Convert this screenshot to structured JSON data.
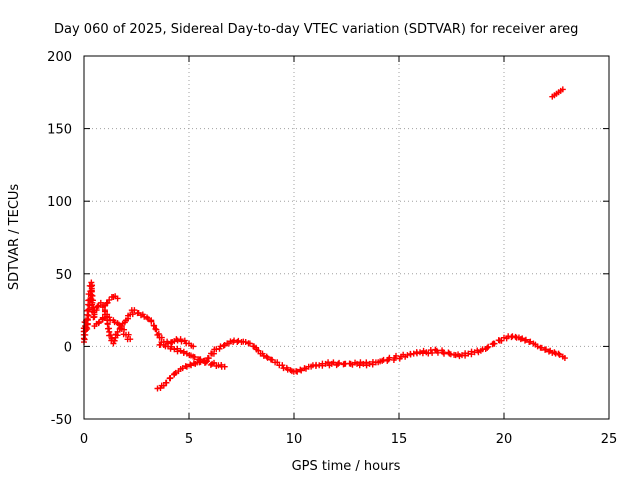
{
  "chart_data": {
    "type": "scatter",
    "title": "Day 060 of 2025, Sidereal Day-to-day VTEC variation (SDTVAR) for receiver areg",
    "xlabel": "GPS time / hours",
    "ylabel": "SDTVAR / TECUs",
    "xlim": [
      0,
      25
    ],
    "ylim": [
      -50,
      200
    ],
    "xticks": [
      0,
      5,
      10,
      15,
      20,
      25
    ],
    "yticks": [
      -50,
      0,
      50,
      100,
      150,
      200
    ],
    "grid": true,
    "marker": "+",
    "colors": {
      "series": "#ff0000",
      "grid": "#a0a0a0",
      "axes": "#000000"
    },
    "series": [
      {
        "name": "SDTVAR",
        "points": [
          [
            0.0,
            3
          ],
          [
            0.05,
            14
          ],
          [
            0.1,
            18
          ],
          [
            0.15,
            12
          ],
          [
            0.2,
            25
          ],
          [
            0.25,
            32
          ],
          [
            0.3,
            38
          ],
          [
            0.35,
            44
          ],
          [
            0.4,
            30
          ],
          [
            0.45,
            20
          ],
          [
            0.5,
            22
          ],
          [
            0.6,
            25
          ],
          [
            0.7,
            28
          ],
          [
            0.8,
            30
          ],
          [
            0.9,
            27
          ],
          [
            1.0,
            24
          ],
          [
            1.1,
            22
          ],
          [
            1.2,
            20
          ],
          [
            1.4,
            18
          ],
          [
            1.6,
            16
          ],
          [
            1.8,
            12
          ],
          [
            2.0,
            8
          ],
          [
            2.2,
            5
          ],
          [
            0.5,
            14
          ],
          [
            0.7,
            16
          ],
          [
            0.9,
            19
          ],
          [
            1.0,
            22
          ],
          [
            1.1,
            18
          ],
          [
            1.2,
            10
          ],
          [
            1.3,
            4
          ],
          [
            1.4,
            2
          ],
          [
            1.5,
            6
          ],
          [
            1.6,
            10
          ],
          [
            1.7,
            12
          ],
          [
            1.8,
            14
          ],
          [
            2.0,
            18
          ],
          [
            2.2,
            22
          ],
          [
            2.4,
            25
          ],
          [
            2.6,
            23
          ],
          [
            2.8,
            22
          ],
          [
            3.0,
            20
          ],
          [
            3.2,
            18
          ],
          [
            3.4,
            12
          ],
          [
            3.6,
            6
          ],
          [
            3.8,
            3
          ],
          [
            4.0,
            2
          ],
          [
            4.2,
            3
          ],
          [
            4.4,
            5
          ],
          [
            4.6,
            5
          ],
          [
            4.8,
            4
          ],
          [
            5.0,
            2
          ],
          [
            5.2,
            0
          ],
          [
            1.0,
            28
          ],
          [
            1.2,
            32
          ],
          [
            1.4,
            34
          ],
          [
            1.6,
            33
          ],
          [
            3.6,
            1
          ],
          [
            3.8,
            1
          ],
          [
            4.0,
            0
          ],
          [
            4.3,
            -2
          ],
          [
            4.6,
            -3
          ],
          [
            4.9,
            -5
          ],
          [
            5.2,
            -7
          ],
          [
            5.5,
            -9
          ],
          [
            5.8,
            -11
          ],
          [
            6.1,
            -12
          ],
          [
            6.4,
            -13
          ],
          [
            6.7,
            -14
          ],
          [
            3.5,
            -29
          ],
          [
            3.7,
            -27
          ],
          [
            3.9,
            -25
          ],
          [
            4.1,
            -22
          ],
          [
            4.3,
            -19
          ],
          [
            4.5,
            -17
          ],
          [
            4.7,
            -15
          ],
          [
            4.9,
            -14
          ],
          [
            5.1,
            -13
          ],
          [
            5.3,
            -12
          ],
          [
            5.5,
            -11
          ],
          [
            5.7,
            -10
          ],
          [
            5.9,
            -8
          ],
          [
            6.1,
            -5
          ],
          [
            6.3,
            -2
          ],
          [
            6.5,
            0
          ],
          [
            6.7,
            1
          ],
          [
            6.9,
            2
          ],
          [
            7.1,
            3
          ],
          [
            7.3,
            3
          ],
          [
            7.5,
            3
          ],
          [
            7.7,
            3
          ],
          [
            7.9,
            2
          ],
          [
            8.1,
            0
          ],
          [
            8.3,
            -3
          ],
          [
            8.5,
            -5
          ],
          [
            8.7,
            -7
          ],
          [
            8.9,
            -9
          ],
          [
            9.1,
            -11
          ],
          [
            9.3,
            -13
          ],
          [
            9.5,
            -15
          ],
          [
            9.7,
            -16
          ],
          [
            9.9,
            -17
          ],
          [
            10.1,
            -17
          ],
          [
            10.3,
            -16
          ],
          [
            10.5,
            -15
          ],
          [
            10.7,
            -14
          ],
          [
            10.9,
            -13
          ],
          [
            11.2,
            -13
          ],
          [
            11.5,
            -12
          ],
          [
            11.8,
            -12
          ],
          [
            12.1,
            -12
          ],
          [
            12.4,
            -12
          ],
          [
            12.7,
            -12
          ],
          [
            13.0,
            -12
          ],
          [
            13.3,
            -12
          ],
          [
            13.6,
            -12
          ],
          [
            13.9,
            -11
          ],
          [
            14.2,
            -10
          ],
          [
            14.5,
            -9
          ],
          [
            14.8,
            -8
          ],
          [
            15.1,
            -7
          ],
          [
            15.4,
            -6
          ],
          [
            15.7,
            -5
          ],
          [
            16.0,
            -4
          ],
          [
            16.3,
            -4
          ],
          [
            16.8,
            -3
          ],
          [
            17.1,
            -4
          ],
          [
            17.4,
            -5
          ],
          [
            17.7,
            -6
          ],
          [
            18.0,
            -6
          ],
          [
            18.3,
            -5
          ],
          [
            18.6,
            -4
          ],
          [
            18.9,
            -3
          ],
          [
            19.2,
            -1
          ],
          [
            19.5,
            2
          ],
          [
            19.8,
            4
          ],
          [
            20.0,
            6
          ],
          [
            20.2,
            7
          ],
          [
            20.4,
            7
          ],
          [
            20.6,
            6
          ],
          [
            20.8,
            5
          ],
          [
            21.0,
            4
          ],
          [
            21.2,
            3
          ],
          [
            21.4,
            2
          ],
          [
            21.6,
            0
          ],
          [
            21.8,
            -1
          ],
          [
            22.0,
            -2
          ],
          [
            22.2,
            -3
          ],
          [
            22.4,
            -4
          ],
          [
            22.6,
            -5
          ],
          [
            22.8,
            -7
          ],
          [
            22.9,
            -8
          ],
          [
            22.3,
            172
          ],
          [
            22.4,
            173
          ],
          [
            22.5,
            174
          ],
          [
            22.6,
            175
          ],
          [
            22.7,
            176
          ],
          [
            22.8,
            177
          ]
        ]
      }
    ]
  }
}
